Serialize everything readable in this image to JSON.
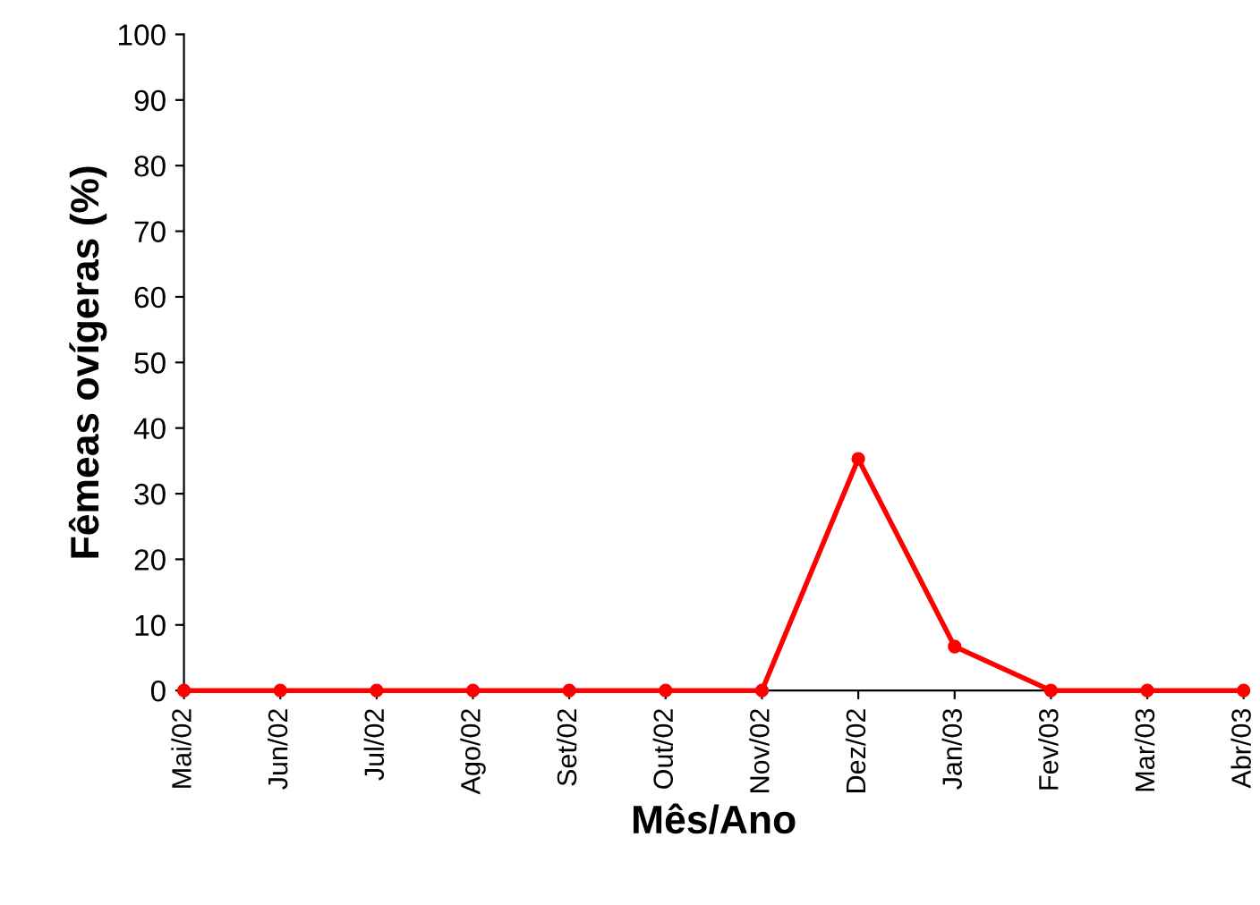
{
  "chart_data": {
    "type": "line",
    "xlabel": "Mês/Ano",
    "ylabel": "Fêmeas ovígeras (%)",
    "categories": [
      "Mai/02",
      "Jun/02",
      "Jul/02",
      "Ago/02",
      "Set/02",
      "Out/02",
      "Nov/02",
      "Dez/02",
      "Jan/03",
      "Fev/03",
      "Mar/03",
      "Abr/03"
    ],
    "series": [
      {
        "color": "#ff0000",
        "values": [
          0,
          0,
          0,
          0,
          0,
          0,
          0,
          35.3,
          6.7,
          0,
          0,
          0
        ]
      }
    ],
    "ylim": [
      0,
      100
    ],
    "yticks": [
      0,
      10,
      20,
      30,
      40,
      50,
      60,
      70,
      80,
      90,
      100
    ],
    "grid": false,
    "marker": "circle",
    "line_style": "solid"
  }
}
